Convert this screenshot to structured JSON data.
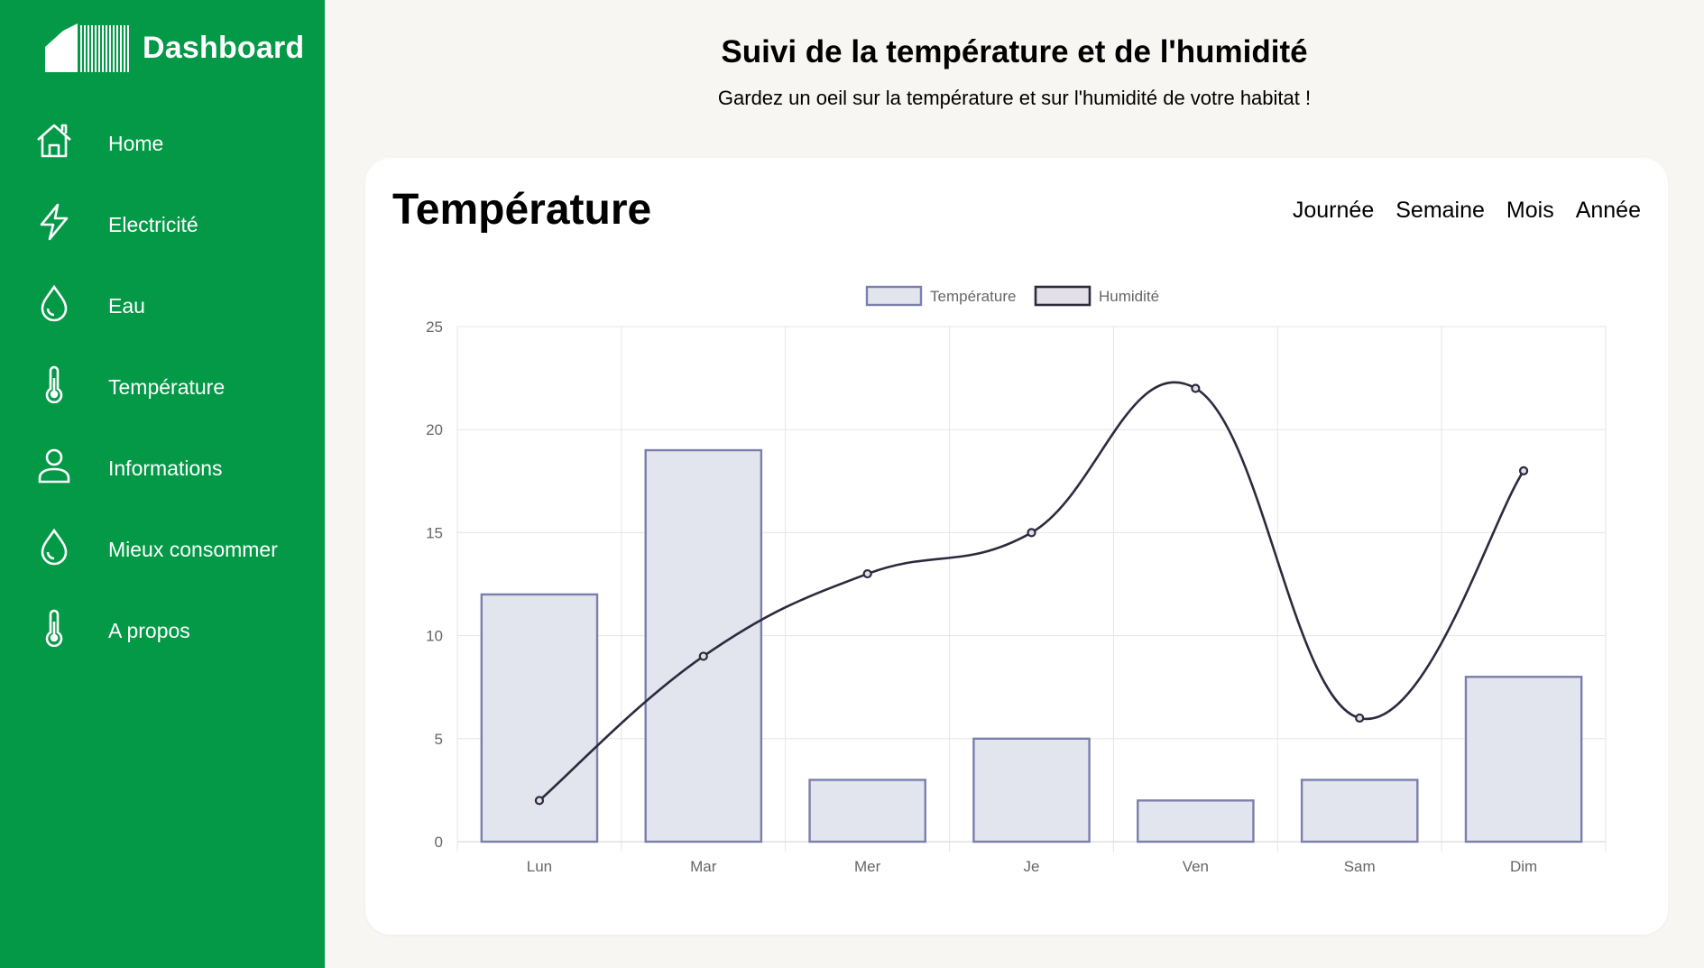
{
  "sidebar": {
    "brand": "Dashboard",
    "items": [
      {
        "label": "Home",
        "icon": "home-icon"
      },
      {
        "label": "Electricité",
        "icon": "lightning-icon"
      },
      {
        "label": "Eau",
        "icon": "water-drop-icon"
      },
      {
        "label": "Température",
        "icon": "thermometer-icon"
      },
      {
        "label": "Informations",
        "icon": "user-icon"
      },
      {
        "label": "Mieux consommer",
        "icon": "water-drop-icon"
      },
      {
        "label": "A propos",
        "icon": "thermometer-icon"
      }
    ]
  },
  "header": {
    "title": "Suivi de la température et de l'humidité",
    "subtitle": "Gardez un oeil sur la température et sur l'humidité de votre habitat !"
  },
  "card": {
    "title": "Température",
    "tabs": [
      "Journée",
      "Semaine",
      "Mois",
      "Année"
    ]
  },
  "colors": {
    "sidebar": "#039947",
    "background": "#f8f6f2",
    "bar_fill": "#e2e4ee",
    "bar_border": "#7b7fab",
    "line": "#2d2a3e"
  },
  "chart_data": {
    "type": "bar",
    "categories": [
      "Lun",
      "Mar",
      "Mer",
      "Je",
      "Ven",
      "Sam",
      "Dim"
    ],
    "series": [
      {
        "name": "Température",
        "type": "bar",
        "values": [
          12,
          19,
          3,
          5,
          2,
          3,
          8
        ]
      },
      {
        "name": "Humidité",
        "type": "line",
        "values": [
          2,
          9,
          13,
          15,
          22,
          6,
          18
        ]
      }
    ],
    "ylim": [
      0,
      25
    ],
    "yticks": [
      0,
      5,
      10,
      15,
      20,
      25
    ],
    "grid": true,
    "legend": "top"
  }
}
